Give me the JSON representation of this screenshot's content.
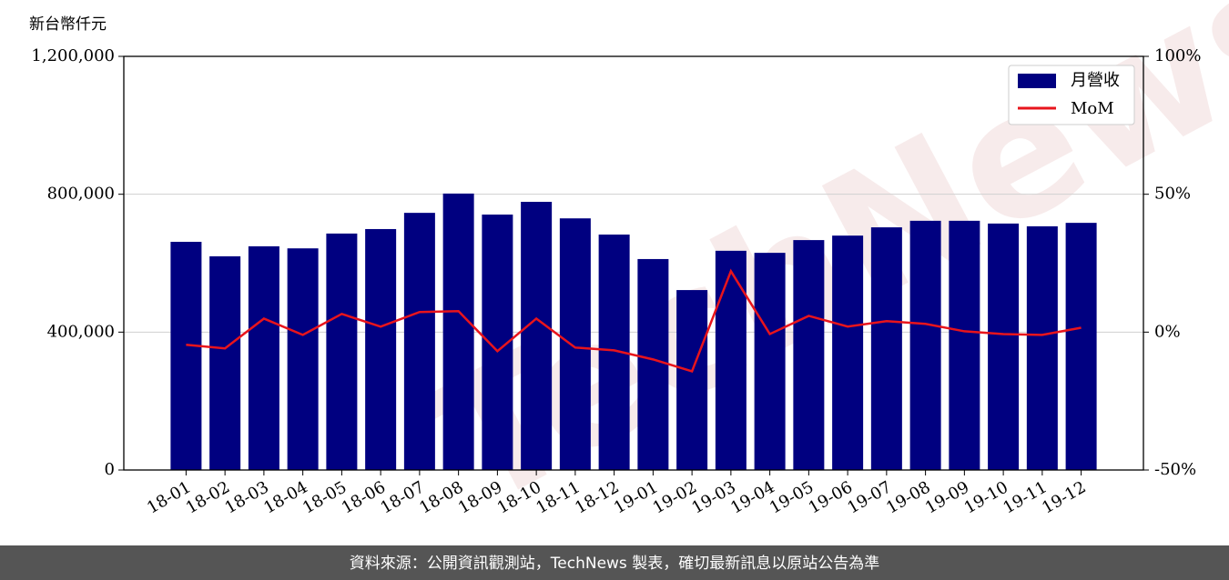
{
  "chart_data": {
    "type": "bar_line",
    "y_label": "新台幣仟元",
    "watermark": "TechNews",
    "footer": "資料來源：公開資訊觀測站，TechNews 製表，確切最新訊息以原站公告為準",
    "categories": [
      "18-01",
      "18-02",
      "18-03",
      "18-04",
      "18-05",
      "18-06",
      "18-07",
      "18-08",
      "18-09",
      "18-10",
      "18-11",
      "18-12",
      "19-01",
      "19-02",
      "19-03",
      "19-04",
      "19-05",
      "19-06",
      "19-07",
      "19-08",
      "19-09",
      "19-10",
      "19-11",
      "19-12"
    ],
    "series": [
      {
        "name": "月營收",
        "type": "bar",
        "color": "#000080",
        "values": [
          662000,
          620000,
          649000,
          643000,
          686000,
          699000,
          746000,
          802000,
          741000,
          778000,
          730000,
          683000,
          612000,
          522000,
          636000,
          630000,
          667000,
          680000,
          704000,
          723000,
          723000,
          715000,
          707000,
          717000
        ]
      },
      {
        "name": "MoM",
        "type": "line",
        "axis": "y2",
        "color": "#e8141c",
        "values": [
          -4.6,
          -5.9,
          4.9,
          -1.0,
          6.6,
          2.0,
          7.3,
          7.6,
          -6.9,
          4.9,
          -5.6,
          -6.6,
          -9.9,
          -14.2,
          22.1,
          -0.7,
          5.9,
          2.0,
          4.0,
          3.0,
          0.3,
          -0.7,
          -1.0,
          1.6
        ]
      }
    ],
    "ylim": [
      0,
      1200000
    ],
    "yticks": [
      0,
      {
        "value": 400000,
        "label": "400,000"
      },
      {
        "value": 800000,
        "label": "800,000"
      },
      {
        "value": 1200000,
        "label": "1,200,000"
      }
    ],
    "y2lim": [
      -50,
      100
    ],
    "y2ticks": [
      {
        "value": -50,
        "label": "-50%"
      },
      {
        "value": 0,
        "label": "0%"
      },
      {
        "value": 50,
        "label": "50%"
      },
      {
        "value": 100,
        "label": "100%"
      }
    ],
    "grid": true,
    "legend": "upper right"
  }
}
